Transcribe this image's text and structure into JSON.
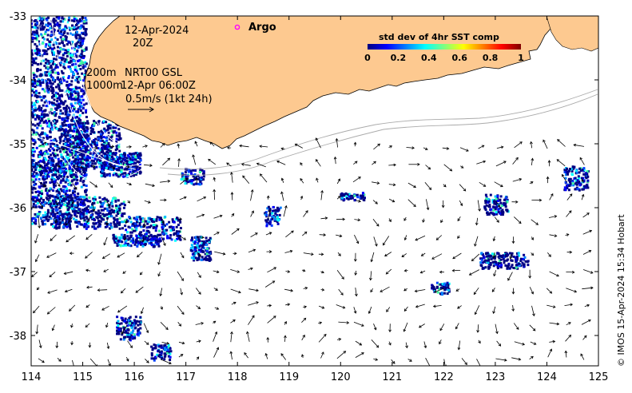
{
  "map": {
    "date_line": "12-Apr-2024",
    "time_line": "20Z",
    "legend_argo": "Argo",
    "iso_line_1": "200m",
    "iso_line_2": "1000m",
    "product_line_1": "NRT00 GSL",
    "product_line_2": "12-Apr 06:00Z",
    "scale_label": "0.5m/s (1kt 24h)",
    "credit": "© IMOS 15-Apr-2024 15:34 Hobart"
  },
  "colorbar": {
    "title": "std dev of 4hr SST comp",
    "ticks": [
      "0",
      "0.2",
      "0.4",
      "0.6",
      "0.8",
      "1"
    ],
    "colors": [
      "#00007f",
      "#0000ff",
      "#007fff",
      "#00ffff",
      "#7fff7f",
      "#ffff00",
      "#ff7f00",
      "#ff0000",
      "#7f0000"
    ]
  },
  "axes": {
    "x_ticks": [
      "114",
      "115",
      "116",
      "117",
      "118",
      "119",
      "120",
      "121",
      "122",
      "123",
      "124",
      "125"
    ],
    "y_ticks": [
      "-33",
      "-34",
      "-35",
      "-36",
      "-37",
      "-38"
    ]
  },
  "colors": {
    "land": "#fdc990",
    "ocean": "#ffffff",
    "sst_low": "#00007f",
    "argo_marker": "#ff00ff"
  }
}
